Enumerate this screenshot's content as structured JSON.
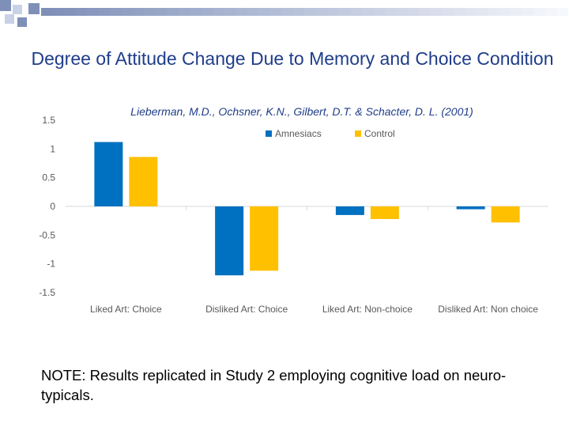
{
  "slide": {
    "title": "Degree of Attitude Change Due to Memory and Choice Condition",
    "note": "NOTE:  Results replicated in Study 2 employing cognitive load on neuro-typicals."
  },
  "colors": {
    "title": "#1f3d8a",
    "amnesiacs": "#0070c0",
    "control": "#ffc000",
    "axis_text": "#595959",
    "decor_dark": "#7e8fb8",
    "decor_light": "#c9d1e6"
  },
  "chart_data": {
    "type": "bar",
    "subtitle": "Lieberman, M.D., Ochsner, K.N., Gilbert, D.T. & Schacter, D. L. (2001)",
    "categories": [
      "Liked Art: Choice",
      "Disliked Art: Choice",
      "Liked Art: Non-choice",
      "Disliked Art: Non choice"
    ],
    "series": [
      {
        "name": "Amnesiacs",
        "values": [
          1.12,
          -1.2,
          -0.15,
          -0.05
        ]
      },
      {
        "name": "Control",
        "values": [
          0.86,
          -1.12,
          -0.22,
          -0.28
        ]
      }
    ],
    "ylim": [
      -1.5,
      1.5
    ],
    "yticks": [
      "1.5",
      "1",
      "0.5",
      "0",
      "-0.5",
      "-1",
      "-1.5"
    ],
    "ytick_values": [
      1.5,
      1,
      0.5,
      0,
      -0.5,
      -1,
      -1.5
    ],
    "legend": "top-center",
    "grid": false
  }
}
